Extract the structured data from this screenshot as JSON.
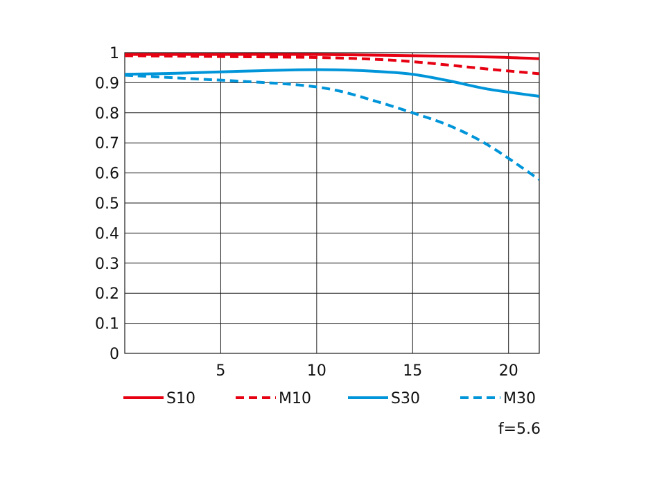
{
  "chart_data": {
    "type": "line",
    "title": "",
    "xlabel": "",
    "ylabel": "",
    "xlim": [
      0,
      21.6
    ],
    "ylim": [
      0,
      1
    ],
    "grid": true,
    "legend_position": "bottom",
    "x_ticks": [
      5,
      10,
      15,
      20
    ],
    "y_ticks": [
      0,
      0.1,
      0.2,
      0.3,
      0.4,
      0.5,
      0.6,
      0.7,
      0.8,
      0.9,
      1
    ],
    "x_tick_labels": [
      "5",
      "10",
      "15",
      "20"
    ],
    "y_tick_labels": [
      "0",
      "0.1",
      "0.2",
      "0.3",
      "0.4",
      "0.5",
      "0.6",
      "0.7",
      "0.8",
      "0.9",
      "1"
    ],
    "series": [
      {
        "name": "S10",
        "color": "#e60012",
        "style": "solid",
        "x": [
          0,
          5,
          10,
          15,
          18,
          20,
          21.6
        ],
        "y": [
          0.994,
          0.994,
          0.994,
          0.99,
          0.987,
          0.984,
          0.98
        ]
      },
      {
        "name": "M10",
        "color": "#e60012",
        "style": "dashed",
        "x": [
          0,
          5,
          10,
          13,
          15,
          17,
          19,
          21.6
        ],
        "y": [
          0.99,
          0.987,
          0.984,
          0.978,
          0.97,
          0.958,
          0.945,
          0.93
        ]
      },
      {
        "name": "S30",
        "color": "#0095d9",
        "style": "solid",
        "x": [
          0,
          3,
          6,
          9,
          11,
          13,
          15,
          17,
          19,
          21.6
        ],
        "y": [
          0.928,
          0.932,
          0.938,
          0.943,
          0.943,
          0.938,
          0.928,
          0.905,
          0.878,
          0.855
        ]
      },
      {
        "name": "M30",
        "color": "#0095d9",
        "style": "dashed",
        "x": [
          0,
          3,
          6,
          9,
          11,
          13,
          15,
          17,
          19,
          21.6
        ],
        "y": [
          0.925,
          0.915,
          0.905,
          0.893,
          0.875,
          0.84,
          0.8,
          0.755,
          0.69,
          0.578
        ]
      }
    ]
  },
  "annotation": "f=5.6"
}
